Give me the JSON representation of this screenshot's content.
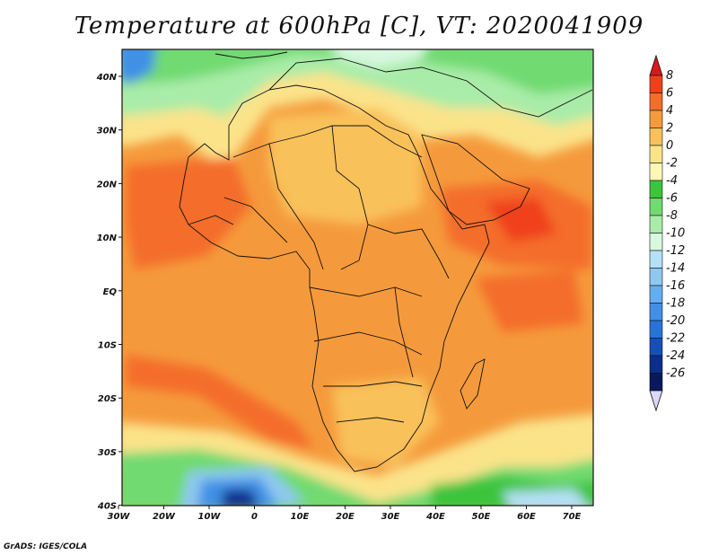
{
  "title": "Temperature at 600hPa [C], VT: 2020041909",
  "credit": "GrADS: IGES/COLA",
  "map": {
    "x_ticks": [
      "30W",
      "20W",
      "10W",
      "0",
      "10E",
      "20E",
      "30E",
      "40E",
      "50E",
      "60E",
      "70E"
    ],
    "y_ticks": [
      "40N",
      "30N",
      "20N",
      "10N",
      "EQ",
      "10S",
      "20S",
      "30S",
      "40S"
    ],
    "lon_range": [
      -30,
      75
    ],
    "lat_range": [
      -40,
      45
    ],
    "field": "Temperature at 600hPa",
    "units": "C"
  },
  "colorbar": {
    "labels": [
      "8",
      "6",
      "4",
      "2",
      "0",
      "-2",
      "-4",
      "-6",
      "-8",
      "-10",
      "-12",
      "-14",
      "-16",
      "-18",
      "-20",
      "-22",
      "-24",
      "-26"
    ],
    "colors": [
      "#d7191c",
      "#f0401a",
      "#f46d2a",
      "#f59a3c",
      "#f9c15a",
      "#fbe38a",
      "#fdf7b6",
      "#3cc43c",
      "#71da71",
      "#a9eca9",
      "#d8f8e0",
      "#b6e0f8",
      "#8ec8f0",
      "#64aef0",
      "#4090e6",
      "#2674d8",
      "#1550b8",
      "#0a2e8c",
      "#08195c"
    ],
    "low_color": "#dcd8ff"
  }
}
